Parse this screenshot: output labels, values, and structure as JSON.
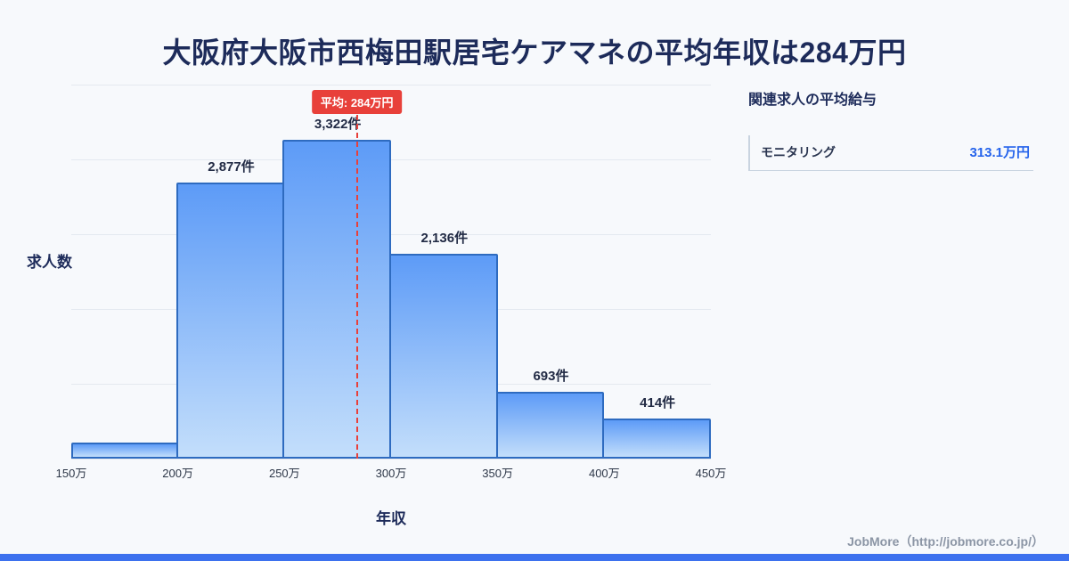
{
  "title": "大阪府大阪市西梅田駅居宅ケアマネの平均年収は284万円",
  "colors": {
    "page_bg": "#f7f9fc",
    "title_color": "#1d2b5a",
    "value_accent": "#2563eb",
    "footer_bar": "#3d71ee"
  },
  "chart_data": {
    "type": "bar",
    "title": "",
    "xlabel": "年収",
    "ylabel": "求人数",
    "x_ticks": [
      "150万",
      "200万",
      "250万",
      "300万",
      "350万",
      "400万",
      "450万"
    ],
    "x_range": [
      150,
      450
    ],
    "ylim": [
      0,
      3900
    ],
    "grid": true,
    "bars": [
      {
        "range": "150万-200万",
        "value": 170,
        "label": ""
      },
      {
        "range": "200万-250万",
        "value": 2877,
        "label": "2,877件"
      },
      {
        "range": "250万-300万",
        "value": 3322,
        "label": "3,322件"
      },
      {
        "range": "300万-350万",
        "value": 2136,
        "label": "2,136件"
      },
      {
        "range": "350万-400万",
        "value": 693,
        "label": "693件"
      },
      {
        "range": "400万-450万",
        "value": 414,
        "label": "414件"
      }
    ],
    "average": {
      "value": 284,
      "label": "平均: 284万円"
    },
    "colors": {
      "bar_gradient_top": "#5d9bf7",
      "bar_gradient_bottom": "#c3defb",
      "bar_border": "#2e6bc0",
      "average_line": "#e8403a",
      "average_badge_bg": "#e8403a",
      "average_badge_text": "#ffffff"
    }
  },
  "side_panel": {
    "title": "関連求人の平均給与",
    "items": [
      {
        "label": "モニタリング",
        "value": "313.1万円"
      }
    ]
  },
  "footer": {
    "credit": "JobMore（http://jobmore.co.jp/）"
  }
}
